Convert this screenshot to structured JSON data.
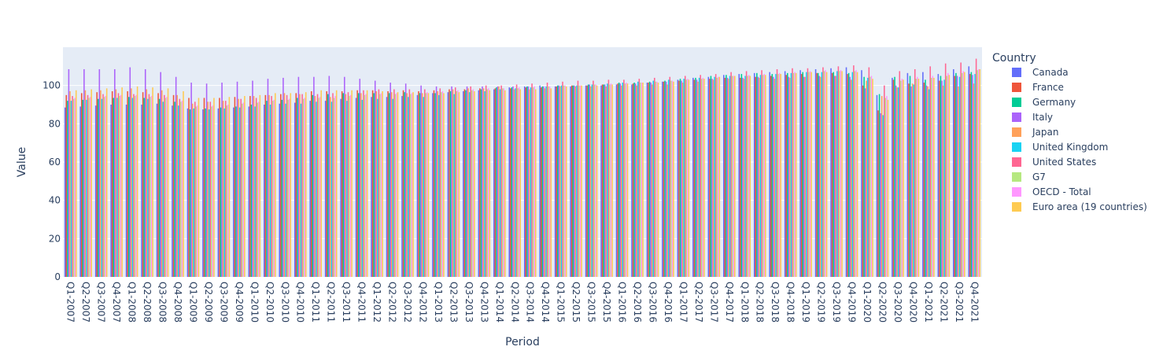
{
  "chart_data": {
    "type": "bar",
    "barmode": "group",
    "xlabel": "Period",
    "ylabel": "Value",
    "ylim": [
      0,
      120
    ],
    "yticks": [
      0,
      20,
      40,
      60,
      80,
      100
    ],
    "grid": true,
    "legend_title": "Country",
    "legend_position": "right",
    "categories": [
      "Q1-2007",
      "Q2-2007",
      "Q3-2007",
      "Q4-2007",
      "Q1-2008",
      "Q2-2008",
      "Q3-2008",
      "Q4-2008",
      "Q1-2009",
      "Q2-2009",
      "Q3-2009",
      "Q4-2009",
      "Q1-2010",
      "Q2-2010",
      "Q3-2010",
      "Q4-2010",
      "Q1-2011",
      "Q2-2011",
      "Q3-2011",
      "Q4-2011",
      "Q1-2012",
      "Q2-2012",
      "Q3-2012",
      "Q4-2012",
      "Q1-2013",
      "Q2-2013",
      "Q3-2013",
      "Q4-2013",
      "Q1-2014",
      "Q2-2014",
      "Q3-2014",
      "Q4-2014",
      "Q1-2015",
      "Q2-2015",
      "Q3-2015",
      "Q4-2015",
      "Q1-2016",
      "Q2-2016",
      "Q3-2016",
      "Q4-2016",
      "Q1-2017",
      "Q2-2017",
      "Q3-2017",
      "Q4-2017",
      "Q1-2018",
      "Q2-2018",
      "Q3-2018",
      "Q4-2018",
      "Q1-2019",
      "Q2-2019",
      "Q3-2019",
      "Q4-2019",
      "Q1-2020",
      "Q2-2020",
      "Q3-2020",
      "Q4-2020",
      "Q1-2021",
      "Q2-2021",
      "Q3-2021",
      "Q4-2021"
    ],
    "series": [
      {
        "name": "Canada",
        "color": "#636efa",
        "values": [
          88.5,
          89.0,
          89.5,
          90.0,
          90.0,
          90.0,
          90.5,
          89.5,
          88.0,
          87.5,
          88.0,
          88.5,
          89.0,
          90.0,
          90.5,
          91.0,
          92.0,
          92.0,
          93.0,
          93.5,
          94.0,
          94.0,
          94.5,
          95.0,
          96.0,
          96.5,
          97.0,
          97.5,
          98.0,
          99.0,
          99.5,
          100.0,
          99.5,
          99.5,
          100.0,
          100.0,
          100.5,
          100.5,
          101.5,
          102.0,
          103.0,
          104.0,
          104.5,
          105.5,
          106.0,
          106.5,
          107.0,
          107.5,
          108.0,
          108.5,
          109.0,
          109.5,
          108.0,
          95.0,
          104.0,
          106.5,
          107.0,
          106.0,
          108.5,
          110.0
        ]
      },
      {
        "name": "France",
        "color": "#ef553b",
        "values": [
          95.0,
          96.0,
          96.5,
          97.0,
          97.0,
          96.5,
          96.0,
          95.0,
          93.5,
          93.5,
          93.5,
          94.0,
          94.5,
          95.0,
          95.5,
          96.0,
          97.0,
          97.0,
          97.0,
          97.5,
          97.5,
          97.0,
          97.5,
          97.0,
          97.5,
          98.0,
          98.0,
          98.5,
          98.5,
          98.5,
          99.0,
          99.0,
          99.5,
          100.0,
          100.0,
          100.5,
          101.0,
          101.0,
          101.5,
          102.0,
          102.5,
          103.0,
          103.5,
          104.0,
          104.0,
          104.5,
          105.0,
          105.5,
          106.0,
          106.5,
          106.5,
          106.0,
          100.0,
          87.0,
          103.0,
          101.0,
          101.5,
          102.5,
          105.0,
          106.0
        ]
      },
      {
        "name": "Germany",
        "color": "#00cc96",
        "values": [
          92.0,
          92.5,
          93.0,
          93.5,
          94.0,
          93.5,
          93.0,
          91.5,
          87.5,
          88.0,
          88.5,
          89.0,
          90.0,
          92.0,
          92.5,
          93.5,
          95.0,
          95.5,
          96.0,
          96.0,
          96.0,
          96.0,
          96.5,
          96.0,
          96.0,
          97.0,
          97.5,
          98.0,
          99.0,
          99.0,
          99.5,
          99.5,
          100.0,
          100.0,
          100.5,
          100.5,
          101.5,
          101.5,
          102.0,
          102.5,
          103.5,
          104.0,
          105.0,
          105.5,
          106.0,
          106.5,
          106.0,
          106.5,
          107.0,
          106.5,
          107.0,
          106.5,
          104.5,
          95.5,
          104.5,
          105.0,
          103.0,
          105.0,
          106.5,
          107.0
        ]
      },
      {
        "name": "Italy",
        "color": "#ab63fa",
        "values": [
          108.5,
          108.5,
          108.5,
          108.5,
          109.5,
          108.5,
          107.0,
          104.5,
          101.5,
          101.0,
          101.5,
          102.0,
          102.5,
          103.5,
          104.0,
          104.5,
          104.5,
          105.0,
          104.5,
          103.5,
          102.5,
          101.5,
          101.0,
          100.0,
          99.5,
          99.5,
          99.5,
          99.5,
          99.5,
          99.5,
          99.5,
          99.5,
          100.0,
          100.0,
          100.5,
          100.5,
          101.0,
          101.0,
          101.5,
          102.0,
          102.5,
          103.0,
          103.5,
          104.0,
          104.0,
          104.5,
          104.5,
          104.5,
          104.5,
          105.0,
          105.0,
          104.5,
          98.5,
          85.5,
          100.0,
          99.5,
          100.0,
          102.5,
          105.0,
          105.5
        ]
      },
      {
        "name": "Japan",
        "color": "#ffa15a",
        "values": [
          97.0,
          97.5,
          97.5,
          98.0,
          98.5,
          98.0,
          97.5,
          95.0,
          90.5,
          91.5,
          92.0,
          93.0,
          94.5,
          95.0,
          96.0,
          95.5,
          94.5,
          94.0,
          95.5,
          96.0,
          97.0,
          96.5,
          96.0,
          96.0,
          97.0,
          98.0,
          98.5,
          98.5,
          99.5,
          98.0,
          98.0,
          98.5,
          99.5,
          99.5,
          99.5,
          99.5,
          100.0,
          100.0,
          100.5,
          100.5,
          101.5,
          102.0,
          103.0,
          103.5,
          103.5,
          104.0,
          103.5,
          104.0,
          104.5,
          104.5,
          105.0,
          103.0,
          102.5,
          94.5,
          99.0,
          101.0,
          99.5,
          100.0,
          99.5,
          101.0
        ]
      },
      {
        "name": "United Kingdom",
        "color": "#19d3f3",
        "values": [
          92.0,
          92.5,
          93.0,
          93.5,
          93.5,
          93.0,
          91.5,
          89.5,
          88.0,
          87.5,
          88.0,
          88.5,
          89.0,
          90.0,
          90.5,
          90.5,
          91.5,
          91.5,
          92.0,
          92.5,
          93.0,
          93.0,
          94.0,
          94.0,
          95.0,
          95.5,
          96.5,
          97.0,
          98.0,
          98.5,
          99.0,
          99.5,
          100.0,
          100.0,
          100.5,
          101.0,
          101.5,
          102.0,
          102.5,
          103.0,
          103.5,
          104.0,
          104.5,
          105.0,
          105.0,
          105.5,
          106.0,
          106.5,
          107.0,
          107.0,
          107.5,
          107.0,
          104.0,
          84.5,
          99.0,
          100.5,
          98.0,
          103.0,
          104.5,
          106.0
        ]
      },
      {
        "name": "United States",
        "color": "#ff6692",
        "values": [
          94.5,
          95.0,
          95.5,
          96.0,
          95.5,
          95.5,
          95.0,
          93.0,
          91.5,
          91.5,
          92.0,
          93.0,
          93.5,
          94.5,
          95.0,
          95.5,
          95.5,
          96.0,
          96.5,
          97.5,
          98.0,
          98.0,
          98.0,
          98.0,
          98.5,
          99.0,
          99.5,
          100.0,
          100.0,
          100.5,
          101.0,
          101.5,
          102.0,
          102.5,
          102.5,
          103.0,
          103.0,
          103.5,
          104.0,
          104.5,
          105.0,
          105.5,
          106.0,
          107.0,
          107.5,
          108.0,
          108.5,
          109.0,
          109.0,
          109.5,
          110.0,
          110.5,
          109.5,
          100.0,
          107.5,
          108.5,
          110.0,
          111.5,
          112.0,
          114.0
        ]
      },
      {
        "name": "G7",
        "color": "#b6e880",
        "values": [
          93.0,
          93.5,
          94.0,
          94.5,
          94.5,
          94.0,
          93.5,
          91.5,
          89.0,
          89.0,
          89.5,
          90.5,
          91.0,
          92.0,
          92.5,
          93.0,
          93.5,
          93.5,
          94.5,
          95.0,
          95.5,
          95.5,
          95.5,
          96.0,
          96.5,
          97.0,
          97.5,
          98.0,
          98.5,
          98.5,
          99.0,
          99.5,
          100.0,
          100.0,
          100.5,
          100.5,
          101.0,
          101.5,
          102.0,
          102.5,
          103.0,
          103.5,
          104.0,
          105.0,
          105.0,
          105.5,
          106.0,
          106.5,
          107.0,
          107.5,
          107.5,
          107.5,
          104.5,
          93.5,
          102.5,
          103.5,
          104.0,
          105.0,
          106.5,
          108.0
        ]
      },
      {
        "name": "OECD - Total",
        "color": "#ff97ff",
        "values": [
          93.5,
          94.0,
          94.5,
          95.0,
          95.0,
          94.5,
          94.0,
          92.0,
          89.5,
          89.5,
          90.0,
          91.0,
          91.5,
          92.5,
          93.0,
          93.5,
          94.0,
          94.5,
          95.0,
          95.5,
          96.0,
          96.0,
          96.0,
          96.5,
          97.0,
          97.5,
          98.0,
          98.5,
          98.5,
          99.0,
          99.5,
          99.5,
          100.0,
          100.0,
          100.5,
          101.0,
          101.5,
          101.5,
          102.0,
          102.5,
          103.5,
          104.0,
          104.5,
          105.0,
          105.5,
          106.0,
          106.5,
          107.0,
          107.5,
          108.0,
          108.0,
          108.0,
          105.0,
          94.5,
          103.5,
          104.5,
          105.0,
          106.5,
          107.5,
          108.5
        ]
      },
      {
        "name": "Euro area (19 countries)",
        "color": "#fecb52",
        "values": [
          97.5,
          98.0,
          98.5,
          99.0,
          99.5,
          99.0,
          98.5,
          97.0,
          93.5,
          93.5,
          94.0,
          94.5,
          95.0,
          96.0,
          96.0,
          96.5,
          97.5,
          97.5,
          97.5,
          97.5,
          97.0,
          96.5,
          96.5,
          96.0,
          96.0,
          96.5,
          97.0,
          97.5,
          97.5,
          98.0,
          98.0,
          98.5,
          99.5,
          100.0,
          100.0,
          100.5,
          101.0,
          101.5,
          101.5,
          102.0,
          103.0,
          103.5,
          104.5,
          105.0,
          105.0,
          105.5,
          106.0,
          106.5,
          107.0,
          107.0,
          107.5,
          107.0,
          103.5,
          92.5,
          103.0,
          103.5,
          104.0,
          105.5,
          107.0,
          108.5
        ]
      }
    ]
  }
}
